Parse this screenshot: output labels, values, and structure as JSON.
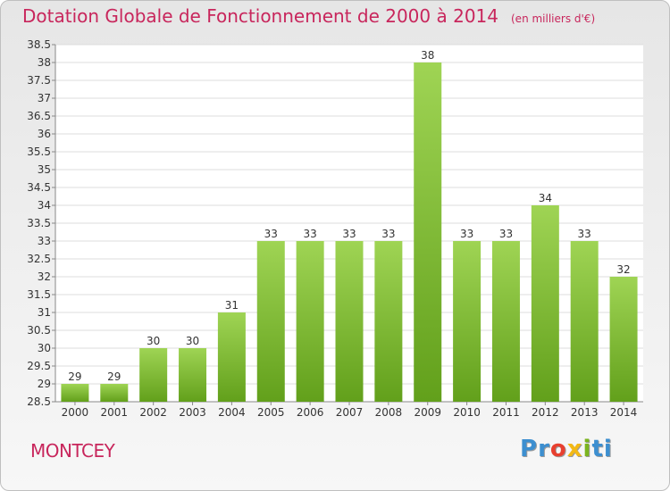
{
  "title": "Dotation Globale de Fonctionnement de 2000 à 2014",
  "subtitle": "(en milliers d'€)",
  "commune": "MONTCEY",
  "logo": {
    "letters": [
      "P",
      "r",
      "o",
      "x",
      "i",
      "t",
      "i"
    ],
    "colors": [
      "#3d8fd0",
      "#3d8fd0",
      "#e8402f",
      "#f3b915",
      "#7bb51f",
      "#3d8fd0",
      "#3d8fd0"
    ]
  },
  "chart_data": {
    "type": "bar",
    "categories": [
      "2000",
      "2001",
      "2002",
      "2003",
      "2004",
      "2005",
      "2006",
      "2007",
      "2008",
      "2009",
      "2010",
      "2011",
      "2012",
      "2013",
      "2014"
    ],
    "values": [
      29,
      29,
      30,
      30,
      31,
      33,
      33,
      33,
      33,
      38,
      33,
      33,
      34,
      33,
      32
    ],
    "value_labels": [
      "29",
      "29",
      "30",
      "30",
      "31",
      "33",
      "33",
      "33",
      "33",
      "38",
      "33",
      "33",
      "34",
      "33",
      "32"
    ],
    "title": "Dotation Globale de Fonctionnement de 2000 à 2014",
    "subtitle": "(en milliers d'€)",
    "xlabel": "",
    "ylabel": "",
    "ylim": [
      28.5,
      38.5
    ],
    "yticks": [
      "28.5",
      "29",
      "29.5",
      "30",
      "30.5",
      "31",
      "31.5",
      "32",
      "32.5",
      "33",
      "33.5",
      "34",
      "34.5",
      "35",
      "35.5",
      "36",
      "36.5",
      "37",
      "37.5",
      "38",
      "38.5"
    ],
    "grid": true,
    "bar_color": "#8cc63f"
  }
}
